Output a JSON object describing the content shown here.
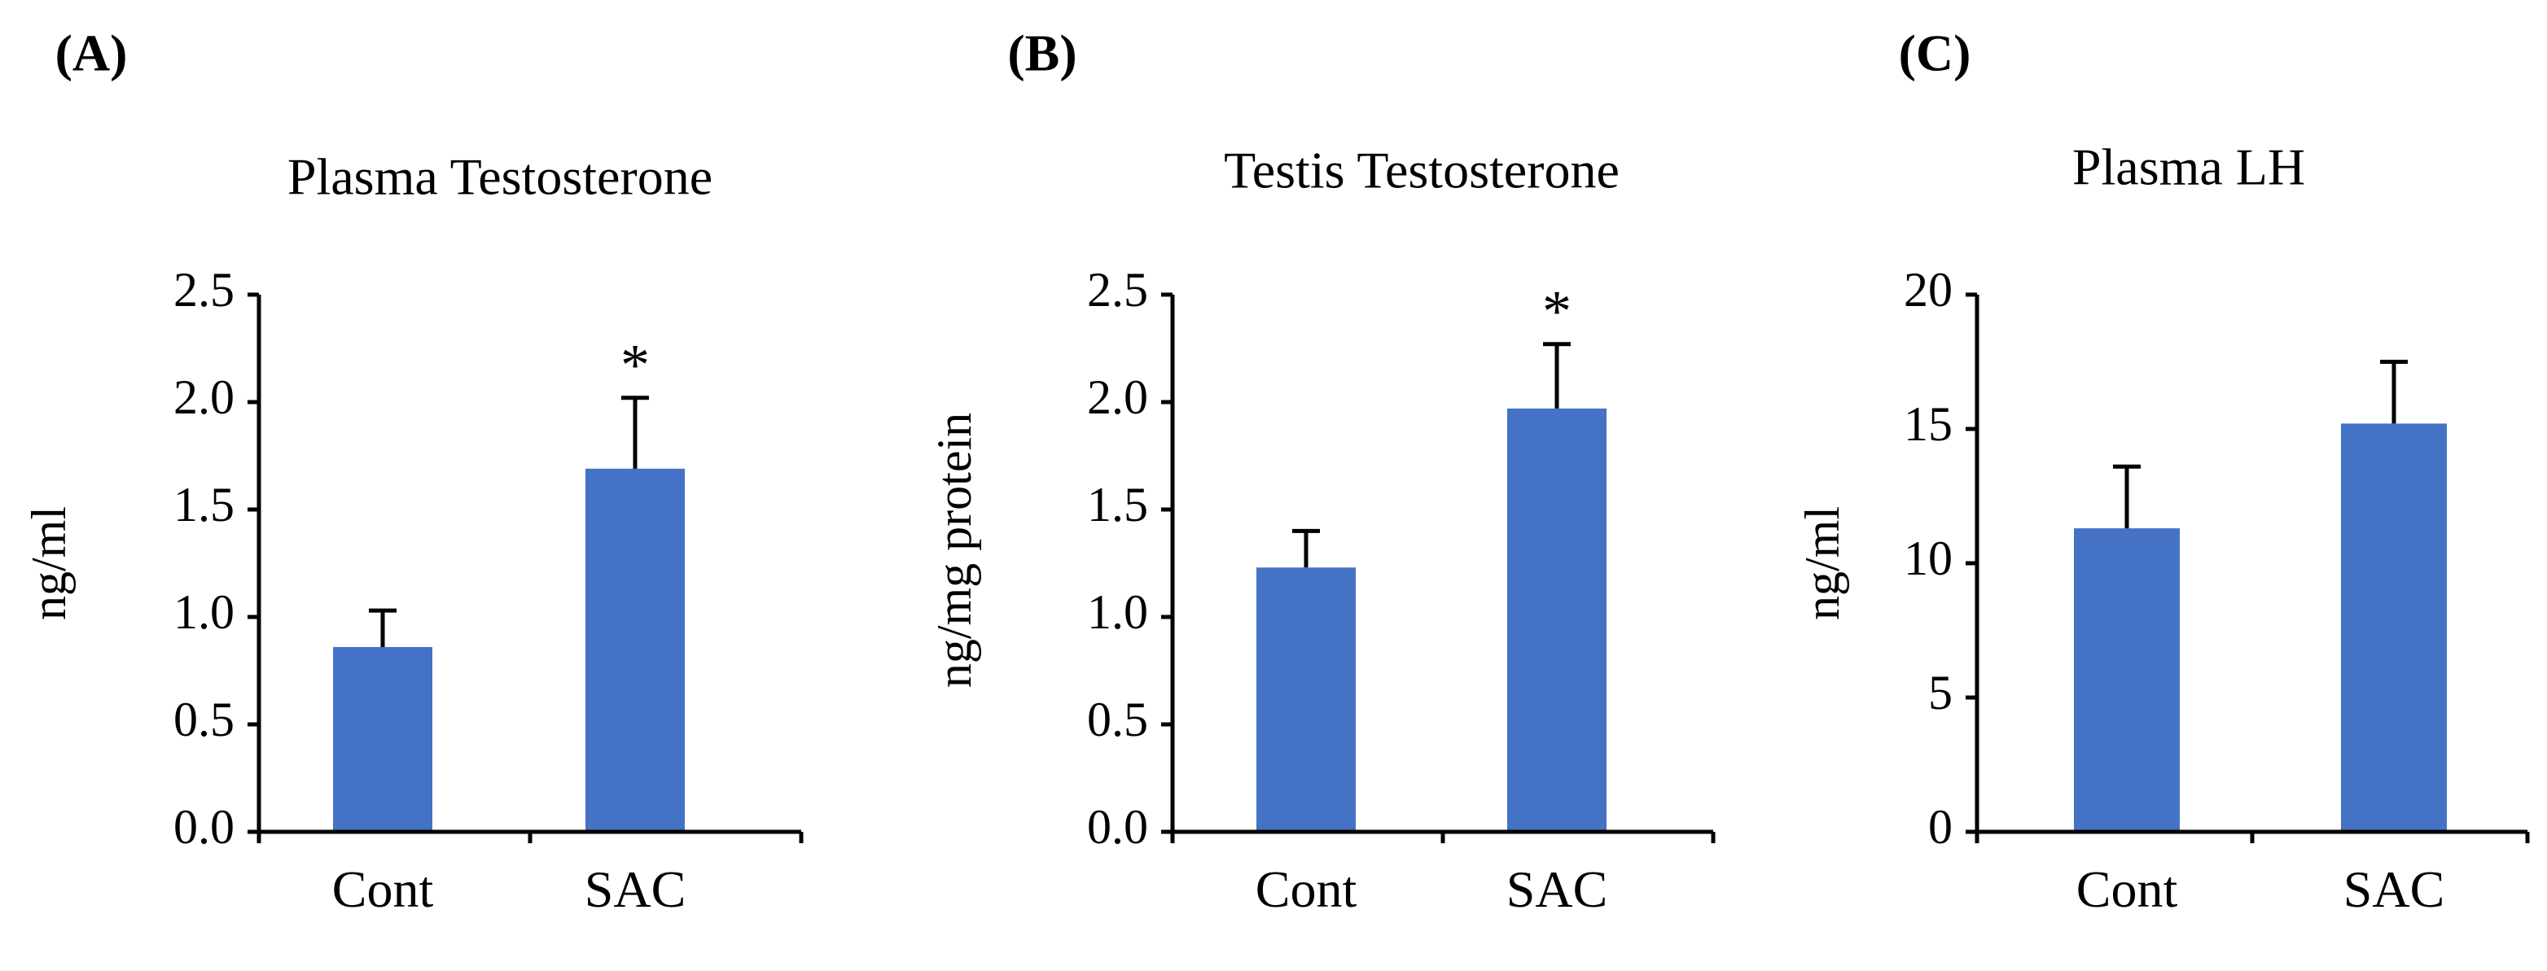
{
  "chart_data": [
    {
      "type": "bar",
      "panel": "(A)",
      "title": "Plasma Testosterone",
      "ylabel": "ng/ml",
      "xlabel": "",
      "categories": [
        "Cont",
        "SAC"
      ],
      "values": [
        0.86,
        1.69
      ],
      "errors": [
        0.17,
        0.33
      ],
      "significance": [
        "",
        "*"
      ],
      "ylim": [
        0,
        2.5
      ],
      "yticks": [
        "0.0",
        "0.5",
        "1.0",
        "1.5",
        "2.0",
        "2.5"
      ],
      "bar_color": "#4472C4"
    },
    {
      "type": "bar",
      "panel": "(B)",
      "title": "Testis Testosterone",
      "ylabel": "ng/mg protein",
      "xlabel": "",
      "categories": [
        "Cont",
        "SAC"
      ],
      "values": [
        1.23,
        1.97
      ],
      "errors": [
        0.17,
        0.3
      ],
      "significance": [
        "",
        "*"
      ],
      "ylim": [
        0,
        2.5
      ],
      "yticks": [
        "0.0",
        "0.5",
        "1.0",
        "1.5",
        "2.0",
        "2.5"
      ],
      "bar_color": "#4472C4"
    },
    {
      "type": "bar",
      "panel": "(C)",
      "title": "Plasma LH",
      "ylabel": "ng/ml",
      "xlabel": "",
      "categories": [
        "Cont",
        "SAC"
      ],
      "values": [
        11.3,
        15.2
      ],
      "errors": [
        2.3,
        2.3
      ],
      "significance": [
        "",
        ""
      ],
      "ylim": [
        0,
        20
      ],
      "yticks": [
        "0",
        "5",
        "10",
        "15",
        "20"
      ],
      "bar_color": "#4472C4"
    }
  ]
}
